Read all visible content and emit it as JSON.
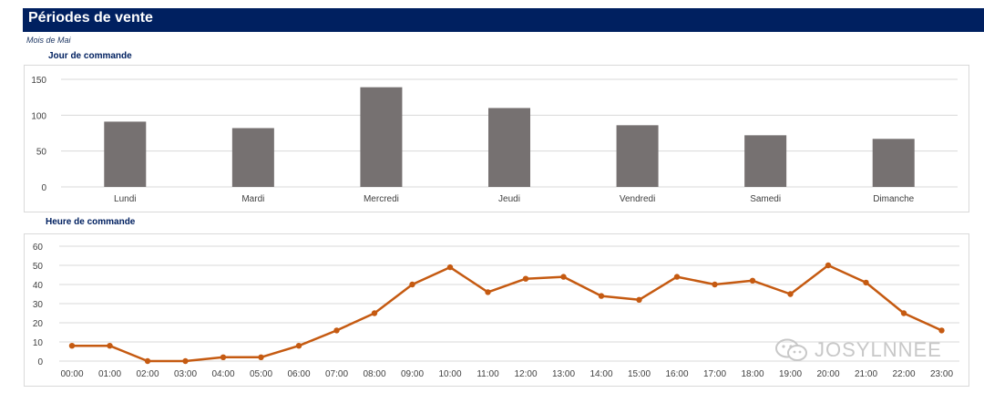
{
  "header": {
    "title": "Périodes de vente",
    "subtitle": "Mois de Mai"
  },
  "charts": {
    "day": {
      "heading": "Jour de commande"
    },
    "hour": {
      "heading": "Heure de commande"
    }
  },
  "watermark": {
    "text": "JOSYLNNEE",
    "icon": "wechat-icon"
  },
  "colors": {
    "banner": "#002060",
    "bar": "#767171",
    "line": "#C55A11",
    "grid": "#d9d9d9"
  },
  "chart_data": [
    {
      "type": "bar",
      "categories": [
        "Lundi",
        "Mardi",
        "Mercredi",
        "Jeudi",
        "Vendredi",
        "Samedi",
        "Dimanche"
      ],
      "values": [
        91,
        82,
        139,
        110,
        86,
        72,
        67
      ],
      "title": "Jour de commande",
      "xlabel": "",
      "ylabel": "",
      "ylim": [
        0,
        150
      ],
      "yticks": [
        0,
        50,
        100,
        150
      ],
      "grid": true,
      "legend": "none"
    },
    {
      "type": "line",
      "x": [
        "00:00",
        "01:00",
        "02:00",
        "03:00",
        "04:00",
        "05:00",
        "06:00",
        "07:00",
        "08:00",
        "09:00",
        "10:00",
        "11:00",
        "12:00",
        "13:00",
        "14:00",
        "15:00",
        "16:00",
        "17:00",
        "18:00",
        "19:00",
        "20:00",
        "21:00",
        "22:00",
        "23:00"
      ],
      "values": [
        8,
        8,
        0,
        0,
        2,
        2,
        8,
        16,
        25,
        40,
        49,
        36,
        43,
        44,
        34,
        32,
        44,
        40,
        42,
        35,
        50,
        41,
        25,
        16
      ],
      "title": "Heure de commande",
      "xlabel": "",
      "ylabel": "",
      "ylim": [
        0,
        60
      ],
      "yticks": [
        0,
        10,
        20,
        30,
        40,
        50,
        60
      ],
      "markers": true,
      "grid": true,
      "legend": "none"
    }
  ]
}
